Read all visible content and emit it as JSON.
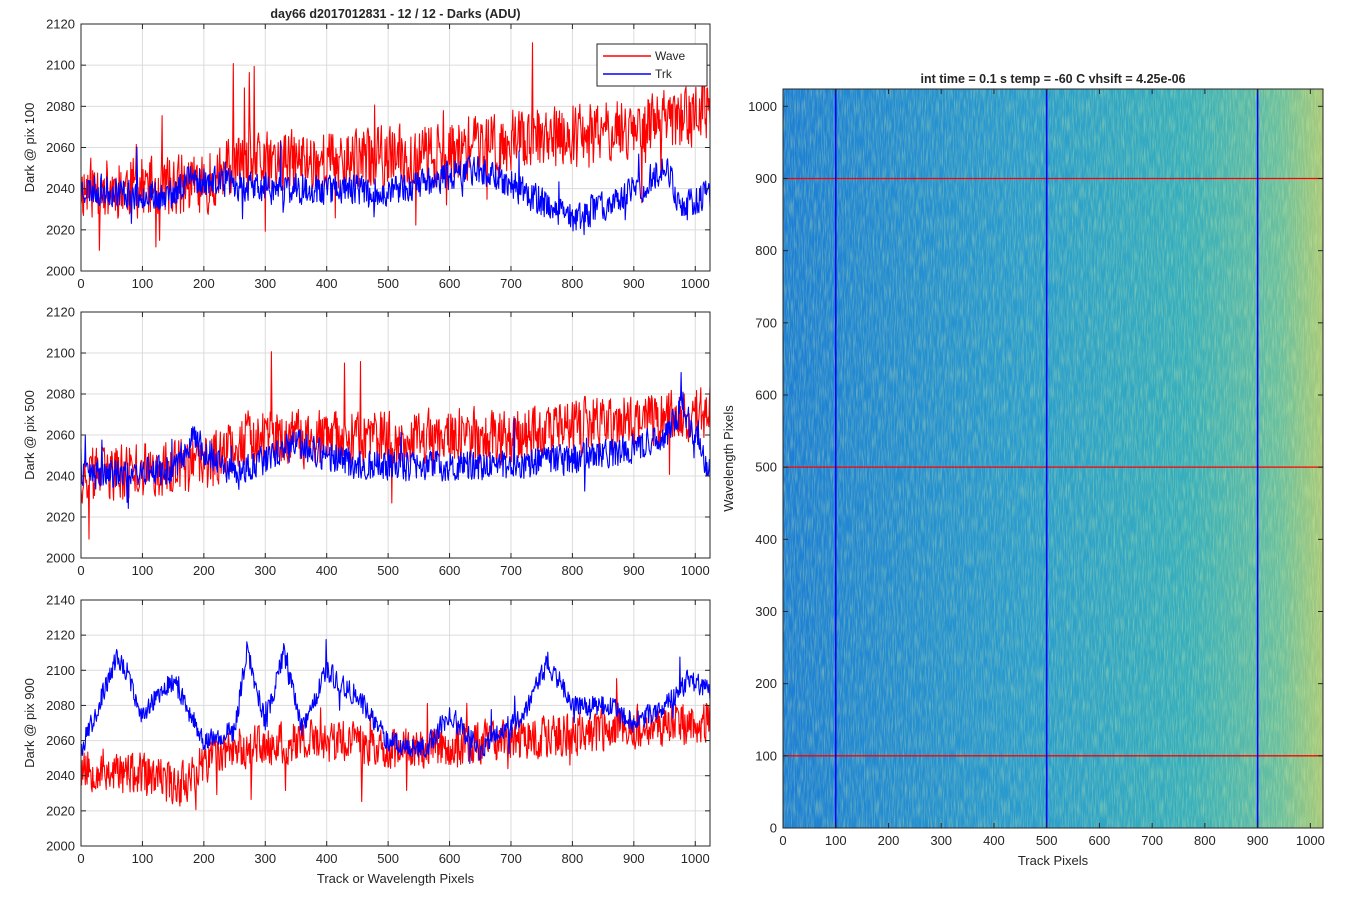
{
  "figure": {
    "title": "day66 d2017012831 - 12 / 12 - Darks (ADU)"
  },
  "chart_data": [
    {
      "type": "line",
      "title": "day66 d2017012831 - 12 / 12 - Darks (ADU)",
      "xlabel": "",
      "ylabel": "Dark @ pix 100",
      "xlim": [
        0,
        1024
      ],
      "ylim": [
        2000,
        2120
      ],
      "xticks": [
        0,
        100,
        200,
        300,
        400,
        500,
        600,
        700,
        800,
        900,
        1000
      ],
      "yticks": [
        2000,
        2020,
        2040,
        2060,
        2080,
        2100,
        2120
      ],
      "grid": true,
      "legend": "top-right",
      "series": [
        {
          "name": "Wave",
          "color": "#ff0000",
          "trend": [
            [
              0,
              2040
            ],
            [
              200,
              2042
            ],
            [
              250,
              2052
            ],
            [
              500,
              2055
            ],
            [
              600,
              2058
            ],
            [
              700,
              2064
            ],
            [
              800,
              2066
            ],
            [
              900,
              2070
            ],
            [
              1024,
              2078
            ]
          ],
          "noise": 12,
          "seed": 11
        },
        {
          "name": "Trk",
          "color": "#0000ff",
          "trend": [
            [
              0,
              2040
            ],
            [
              150,
              2036
            ],
            [
              170,
              2045
            ],
            [
              300,
              2040
            ],
            [
              450,
              2040
            ],
            [
              500,
              2038
            ],
            [
              650,
              2050
            ],
            [
              700,
              2042
            ],
            [
              800,
              2025
            ],
            [
              850,
              2032
            ],
            [
              920,
              2042
            ],
            [
              950,
              2052
            ],
            [
              980,
              2030
            ],
            [
              1024,
              2038
            ]
          ],
          "noise": 6,
          "seed": 23
        }
      ]
    },
    {
      "type": "line",
      "title": "",
      "xlabel": "",
      "ylabel": "Dark @ pix 500",
      "xlim": [
        0,
        1024
      ],
      "ylim": [
        2000,
        2120
      ],
      "xticks": [
        0,
        100,
        200,
        300,
        400,
        500,
        600,
        700,
        800,
        900,
        1000
      ],
      "yticks": [
        2000,
        2020,
        2040,
        2060,
        2080,
        2100,
        2120
      ],
      "grid": true,
      "series": [
        {
          "name": "Wave",
          "color": "#ff0000",
          "trend": [
            [
              0,
              2040
            ],
            [
              200,
              2045
            ],
            [
              260,
              2058
            ],
            [
              500,
              2058
            ],
            [
              700,
              2060
            ],
            [
              850,
              2065
            ],
            [
              1024,
              2072
            ]
          ],
          "noise": 11,
          "seed": 37
        },
        {
          "name": "Trk",
          "color": "#0000ff",
          "trend": [
            [
              0,
              2040
            ],
            [
              150,
              2043
            ],
            [
              180,
              2058
            ],
            [
              250,
              2040
            ],
            [
              350,
              2055
            ],
            [
              450,
              2045
            ],
            [
              550,
              2045
            ],
            [
              700,
              2045
            ],
            [
              850,
              2050
            ],
            [
              950,
              2058
            ],
            [
              980,
              2075
            ],
            [
              1024,
              2040
            ]
          ],
          "noise": 6,
          "seed": 41
        }
      ]
    },
    {
      "type": "line",
      "title": "",
      "xlabel": "Track or Wavelength Pixels",
      "ylabel": "Dark @ pix 900",
      "xlim": [
        0,
        1024
      ],
      "ylim": [
        2000,
        2140
      ],
      "xticks": [
        0,
        100,
        200,
        300,
        400,
        500,
        600,
        700,
        800,
        900,
        1000
      ],
      "yticks": [
        2000,
        2020,
        2040,
        2060,
        2080,
        2100,
        2120,
        2140
      ],
      "grid": true,
      "series": [
        {
          "name": "Wave",
          "color": "#ff0000",
          "trend": [
            [
              0,
              2045
            ],
            [
              100,
              2040
            ],
            [
              160,
              2035
            ],
            [
              230,
              2055
            ],
            [
              400,
              2060
            ],
            [
              500,
              2055
            ],
            [
              700,
              2060
            ],
            [
              1024,
              2072
            ]
          ],
          "noise": 10,
          "seed": 53
        },
        {
          "name": "Trk",
          "color": "#0000ff",
          "trend": [
            [
              0,
              2055
            ],
            [
              60,
              2108
            ],
            [
              100,
              2075
            ],
            [
              150,
              2095
            ],
            [
              200,
              2060
            ],
            [
              250,
              2065
            ],
            [
              270,
              2112
            ],
            [
              300,
              2070
            ],
            [
              330,
              2110
            ],
            [
              360,
              2065
            ],
            [
              400,
              2100
            ],
            [
              450,
              2085
            ],
            [
              500,
              2060
            ],
            [
              560,
              2055
            ],
            [
              600,
              2075
            ],
            [
              650,
              2055
            ],
            [
              720,
              2075
            ],
            [
              760,
              2105
            ],
            [
              800,
              2080
            ],
            [
              860,
              2080
            ],
            [
              900,
              2070
            ],
            [
              950,
              2080
            ],
            [
              990,
              2095
            ],
            [
              1024,
              2088
            ]
          ],
          "noise": 5,
          "seed": 67
        }
      ]
    },
    {
      "type": "heatmap",
      "title": "int time = 0.1 s   temp = -60 C   vhsift = 4.25e-06",
      "xlabel": "Track Pixels",
      "ylabel": "Wavelength Pixels",
      "xlim": [
        0,
        1024
      ],
      "ylim": [
        0,
        1024
      ],
      "xticks": [
        0,
        100,
        200,
        300,
        400,
        500,
        600,
        700,
        800,
        900,
        1000
      ],
      "yticks": [
        0,
        100,
        200,
        300,
        400,
        500,
        600,
        700,
        800,
        900,
        1000
      ],
      "grid": false,
      "vertical_markers": {
        "color": "#0000ff",
        "x": [
          100,
          500,
          900
        ]
      },
      "horizontal_markers": {
        "color": "#ff0000",
        "y": [
          100,
          500,
          900
        ]
      },
      "colormap": [
        "#1d7fd4",
        "#2a9cce",
        "#36aebd",
        "#69bfa0",
        "#a8c97a"
      ]
    }
  ]
}
